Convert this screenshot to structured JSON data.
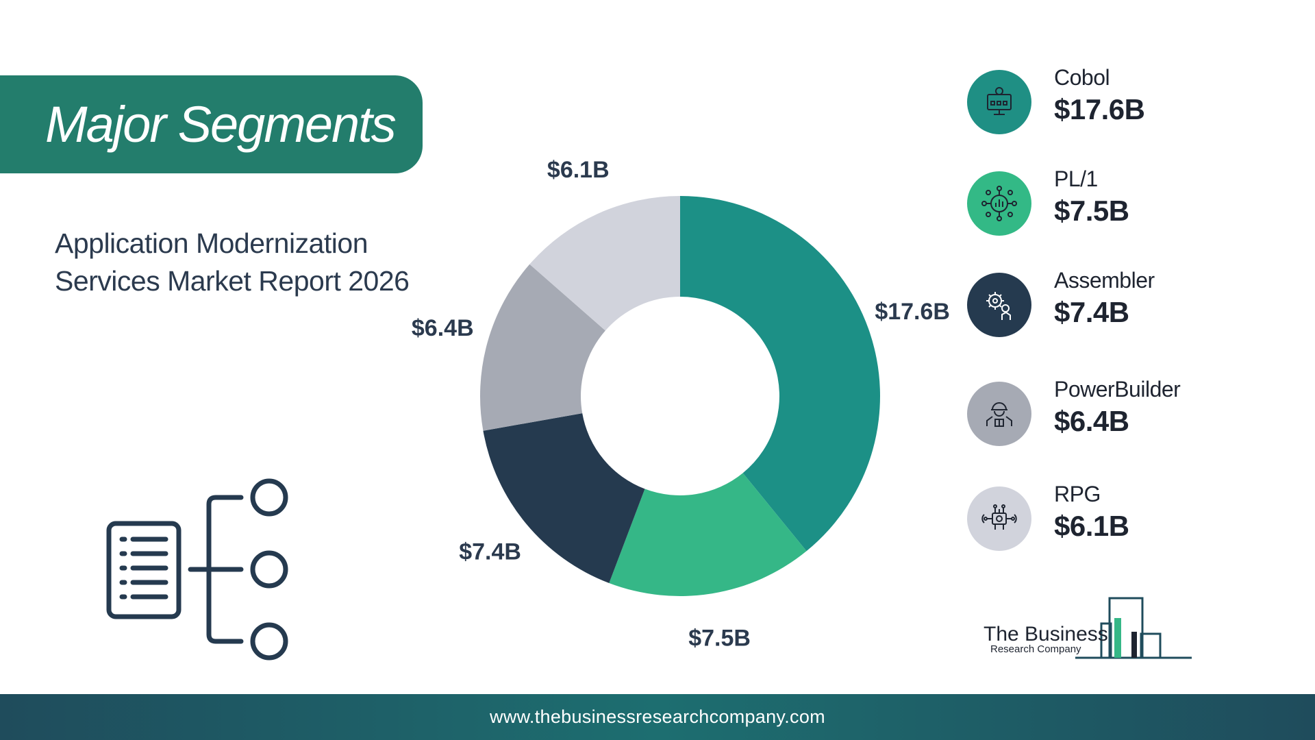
{
  "header": {
    "title": "Major Segments"
  },
  "report": {
    "line1": "Application Modernization",
    "line2": "Services Market Report 2026"
  },
  "chart_data": {
    "type": "pie",
    "variant": "donut",
    "categories": [
      "Cobol",
      "PL/1",
      "Assembler",
      "PowerBuilder",
      "RPG"
    ],
    "values": [
      17.6,
      7.5,
      7.4,
      6.4,
      6.1
    ],
    "labels": [
      "$17.6B",
      "$7.5B",
      "$7.4B",
      "$6.4B",
      "$6.1B"
    ],
    "colors": [
      "#1c9086",
      "#35b787",
      "#253a4f",
      "#a6aab4",
      "#d1d3dc"
    ],
    "unit": "$B",
    "start": "12 o'clock",
    "direction": "clockwise"
  },
  "legend": {
    "items": [
      {
        "name": "Cobol",
        "value": "$17.6B",
        "icon": "monitor-lightbulb-icon",
        "color": "#1f8f84"
      },
      {
        "name": "PL/1",
        "value": "$7.5B",
        "icon": "network-chart-icon",
        "color": "#33b986"
      },
      {
        "name": "Assembler",
        "value": "$7.4B",
        "icon": "gear-hand-icon",
        "color": "#253a4f"
      },
      {
        "name": "PowerBuilder",
        "value": "$6.4B",
        "icon": "worker-helmet-icon",
        "color": "#a6aab4"
      },
      {
        "name": "RPG",
        "value": "$6.1B",
        "icon": "circuit-chip-icon",
        "color": "#d1d3dc"
      }
    ]
  },
  "logo": {
    "line1": "The Business",
    "line2": "Research Company",
    "icon": "bar-buildings-logo-icon"
  },
  "illustration": {
    "icon": "document-tree-icon"
  },
  "footer": {
    "url": "www.thebusinessresearchcompany.com"
  }
}
